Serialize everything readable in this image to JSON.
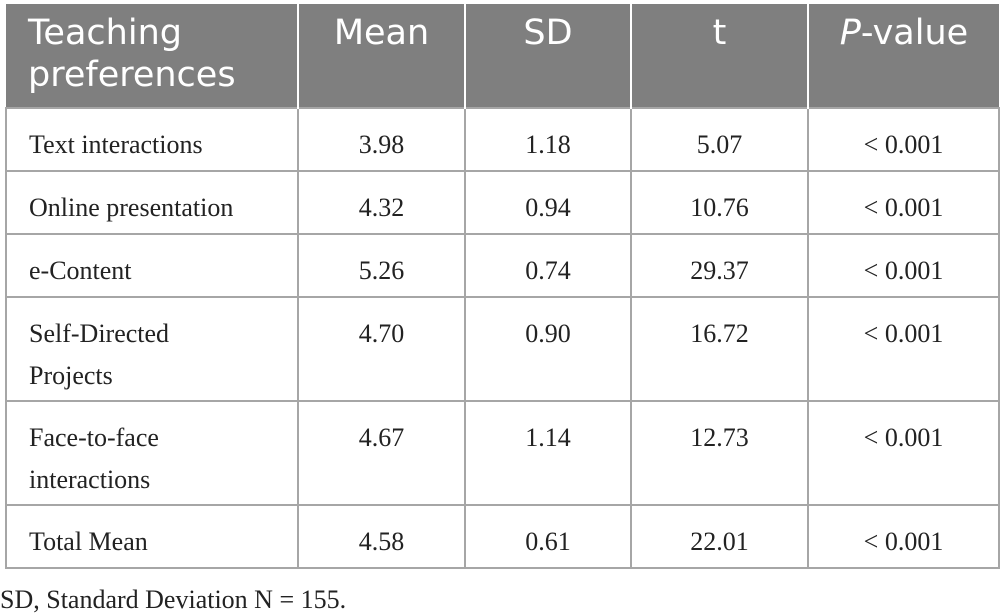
{
  "table": {
    "headers": {
      "col1_line1": "Teaching",
      "col1_line2": "preferences",
      "mean": "Mean",
      "sd": "SD",
      "t": "t",
      "p_prefix": "P",
      "p_suffix": "-value"
    },
    "rows": [
      {
        "label_line1": "Text interactions",
        "label_line2": "",
        "mean": "3.98",
        "sd": "1.18",
        "t": "5.07",
        "p": "< 0.001"
      },
      {
        "label_line1": "Online presentation",
        "label_line2": "",
        "mean": "4.32",
        "sd": "0.94",
        "t": "10.76",
        "p": "< 0.001"
      },
      {
        "label_line1": "e-Content",
        "label_line2": "",
        "mean": "5.26",
        "sd": "0.74",
        "t": "29.37",
        "p": "< 0.001"
      },
      {
        "label_line1": "Self-Directed",
        "label_line2": "Projects",
        "mean": "4.70",
        "sd": "0.90",
        "t": "16.72",
        "p": "< 0.001"
      },
      {
        "label_line1": "Face-to-face",
        "label_line2": "interactions",
        "mean": "4.67",
        "sd": "1.14",
        "t": "12.73",
        "p": "< 0.001"
      },
      {
        "label_line1": "Total Mean",
        "label_line2": "",
        "mean": "4.58",
        "sd": "0.61",
        "t": "22.01",
        "p": "< 0.001"
      }
    ]
  },
  "footnote": "SD, Standard Deviation N = 155.",
  "colors": {
    "header_bg": "#7f7f7f",
    "header_text": "#ffffff",
    "border": "#a6a6a6",
    "body_text": "#222222"
  }
}
